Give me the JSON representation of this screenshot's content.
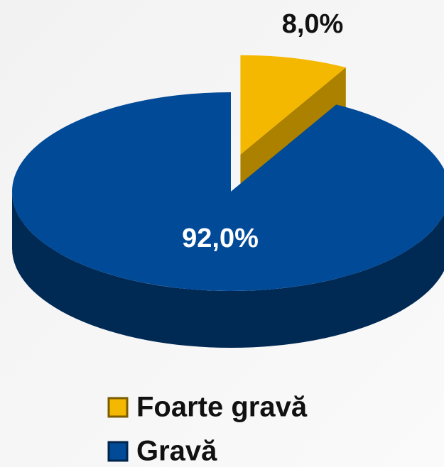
{
  "chart_data": {
    "type": "pie3d",
    "categories": [
      "Foarte gravă",
      "Gravă"
    ],
    "values": [
      8.0,
      92.0
    ],
    "value_labels": [
      "8,0%",
      "92,0%"
    ],
    "colors": [
      "#f5b800",
      "#004a98"
    ],
    "legend": "bottom"
  }
}
